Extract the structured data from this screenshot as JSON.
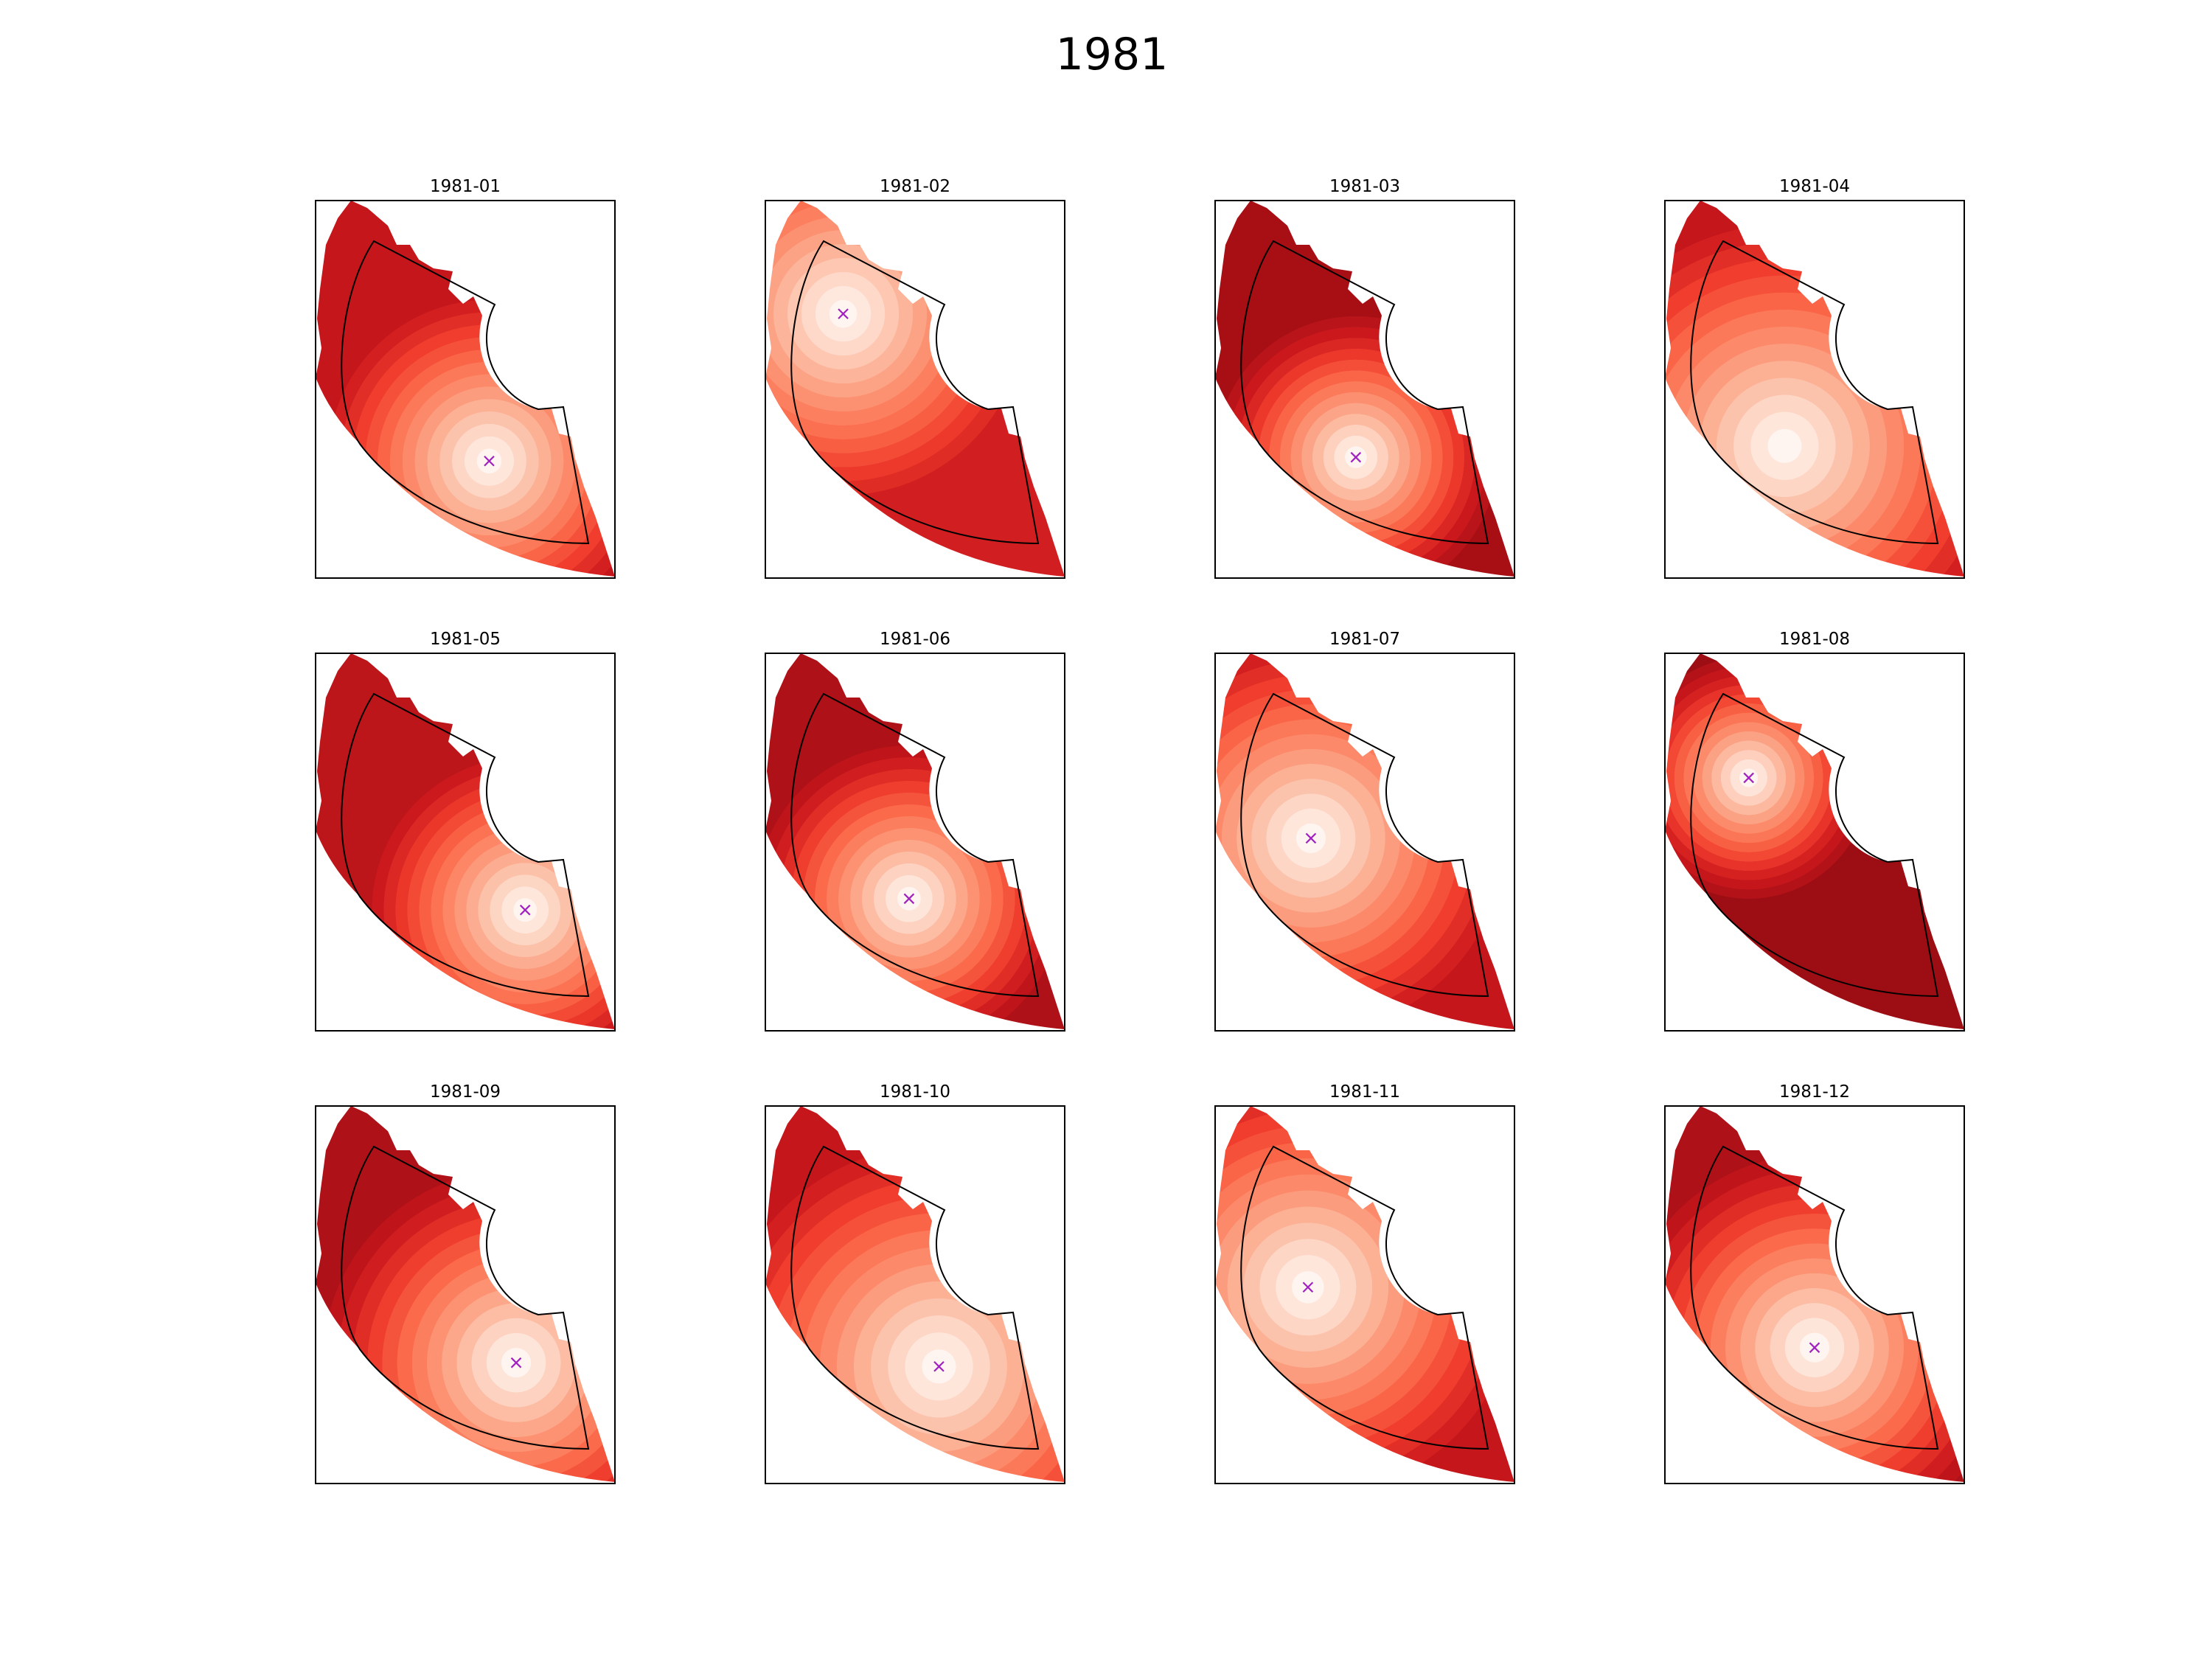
{
  "chart_data": {
    "type": "heatmap",
    "title": "1981",
    "colormap": "Reds",
    "marker_color": "#a020c0",
    "marker_symbol": "x",
    "grid": false,
    "layout": "3x4",
    "panels": [
      {
        "title": "1981-01",
        "hotspot": [
          0.58,
          0.69
        ],
        "spread": 0.4,
        "darkness": 0.55,
        "marker": [
          0.58,
          0.69
        ]
      },
      {
        "title": "1981-02",
        "hotspot": [
          0.26,
          0.3
        ],
        "spread": 0.45,
        "darkness": 0.45,
        "marker": [
          0.26,
          0.3
        ]
      },
      {
        "title": "1981-03",
        "hotspot": [
          0.47,
          0.68
        ],
        "spread": 0.35,
        "darkness": 0.75,
        "marker": [
          0.47,
          0.68
        ]
      },
      {
        "title": "1981-04",
        "hotspot": [
          0.4,
          0.65
        ],
        "spread": 0.55,
        "darkness": 0.55,
        "marker": null
      },
      {
        "title": "1981-05",
        "hotspot": [
          0.7,
          0.68
        ],
        "spread": 0.38,
        "darkness": 0.6,
        "marker": [
          0.7,
          0.68
        ]
      },
      {
        "title": "1981-06",
        "hotspot": [
          0.48,
          0.65
        ],
        "spread": 0.38,
        "darkness": 0.7,
        "marker": [
          0.48,
          0.65
        ]
      },
      {
        "title": "1981-07",
        "hotspot": [
          0.32,
          0.49
        ],
        "spread": 0.48,
        "darkness": 0.55,
        "marker": [
          0.32,
          0.49
        ]
      },
      {
        "title": "1981-08",
        "hotspot": [
          0.28,
          0.33
        ],
        "spread": 0.3,
        "darkness": 0.8,
        "marker": [
          0.28,
          0.33
        ]
      },
      {
        "title": "1981-09",
        "hotspot": [
          0.67,
          0.68
        ],
        "spread": 0.48,
        "darkness": 0.7,
        "marker": [
          0.67,
          0.68
        ]
      },
      {
        "title": "1981-10",
        "hotspot": [
          0.58,
          0.69
        ],
        "spread": 0.55,
        "darkness": 0.55,
        "marker": [
          0.58,
          0.69
        ]
      },
      {
        "title": "1981-11",
        "hotspot": [
          0.31,
          0.48
        ],
        "spread": 0.52,
        "darkness": 0.55,
        "marker": [
          0.31,
          0.48
        ]
      },
      {
        "title": "1981-12",
        "hotspot": [
          0.5,
          0.64
        ],
        "spread": 0.48,
        "darkness": 0.7,
        "marker": [
          0.5,
          0.64
        ]
      }
    ]
  }
}
